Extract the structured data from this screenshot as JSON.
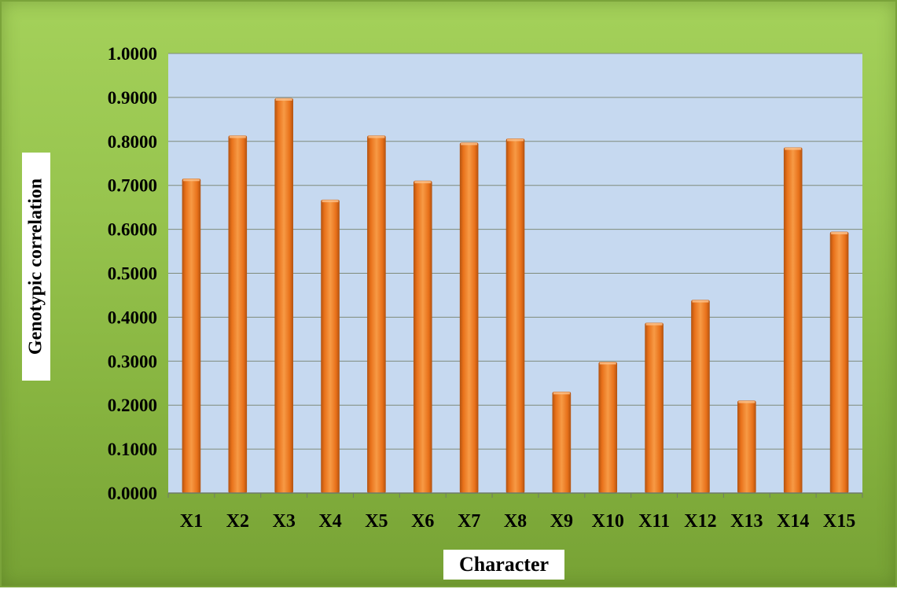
{
  "chart_data": {
    "type": "bar",
    "xlabel": "Character",
    "ylabel": "Genotypic correlation",
    "categories": [
      "X1",
      "X2",
      "X3",
      "X4",
      "X5",
      "X6",
      "X7",
      "X8",
      "X9",
      "X10",
      "X11",
      "X12",
      "X13",
      "X14",
      "X15"
    ],
    "values": [
      0.715,
      0.813,
      0.898,
      0.667,
      0.813,
      0.71,
      0.797,
      0.806,
      0.23,
      0.298,
      0.387,
      0.439,
      0.21,
      0.786,
      0.594
    ],
    "ylim": [
      0,
      1
    ],
    "yticks": [
      "0.0000",
      "0.1000",
      "0.2000",
      "0.3000",
      "0.4000",
      "0.5000",
      "0.6000",
      "0.7000",
      "0.8000",
      "0.9000",
      "1.0000"
    ],
    "grid": true,
    "legend": "none",
    "colors": {
      "bar": "#e8711a",
      "bar_light": "#f79a45",
      "bar_dark": "#b65410",
      "plot_area": "#c6d9f0",
      "frame": "#9ccb55"
    }
  }
}
